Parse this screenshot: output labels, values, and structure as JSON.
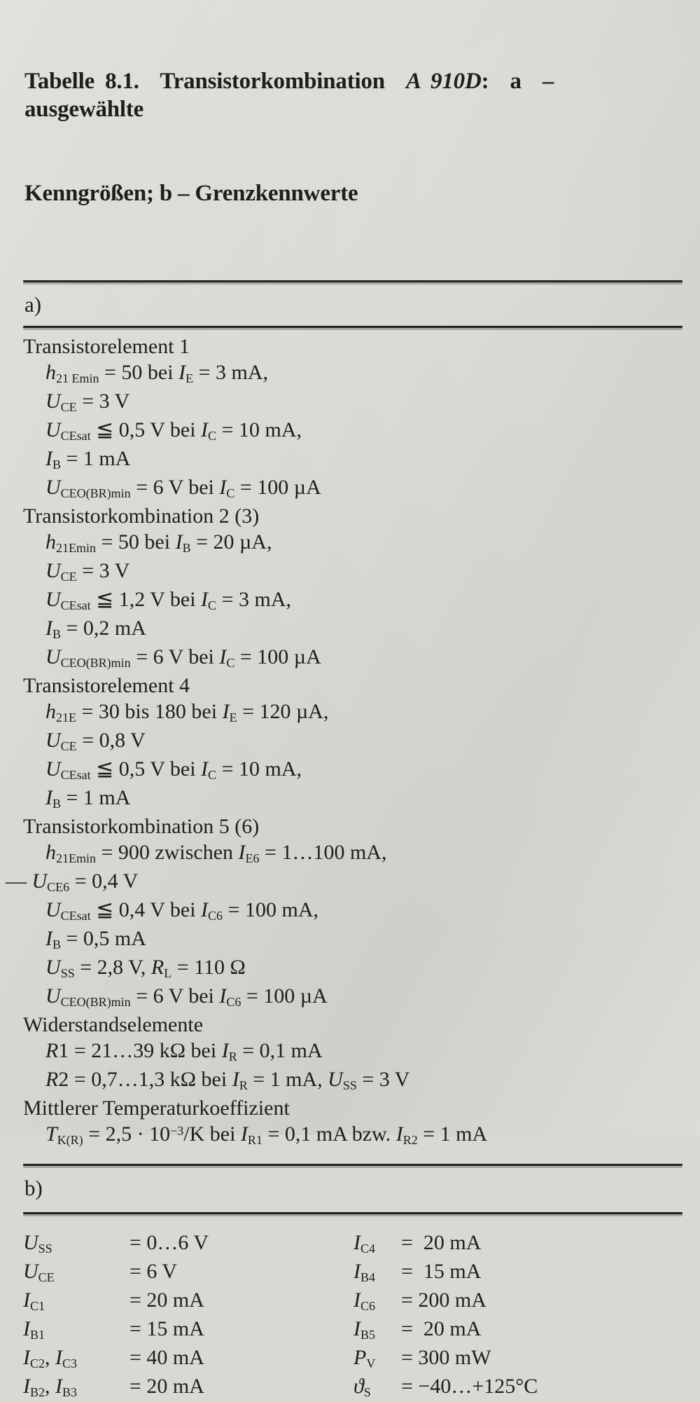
{
  "caption": {
    "line1": [
      {
        "t": "Tabelle 8.1."
      },
      {
        "t": "  Transistorkombination  "
      },
      {
        "t": "A 910D",
        "s": "i"
      },
      {
        "t": ":  a  –  ausgewählte"
      }
    ],
    "line2": [
      {
        "t": "Kenngrößen; b – Grenzkennwerte"
      }
    ]
  },
  "section_a": {
    "label": "a)",
    "lines": [
      {
        "ind": "h",
        "seg": [
          {
            "t": "Transistorelement 1"
          }
        ]
      },
      {
        "ind": "m",
        "seg": [
          {
            "t": "h",
            "s": "i"
          },
          {
            "t": "21 Emin",
            "s": "sub"
          },
          {
            "t": " = 50 bei "
          },
          {
            "t": "I",
            "s": "i"
          },
          {
            "t": "E",
            "s": "sub"
          },
          {
            "t": " = 3 mA,"
          }
        ]
      },
      {
        "ind": "m",
        "seg": [
          {
            "t": "U",
            "s": "i"
          },
          {
            "t": "CE",
            "s": "sub"
          },
          {
            "t": " = 3 V"
          }
        ]
      },
      {
        "ind": "m",
        "seg": [
          {
            "t": "U",
            "s": "i"
          },
          {
            "t": "CEsat",
            "s": "sub"
          },
          {
            "t": " ≦ 0,5 V bei "
          },
          {
            "t": "I",
            "s": "i"
          },
          {
            "t": "C",
            "s": "sub"
          },
          {
            "t": " = 10 mA,"
          }
        ]
      },
      {
        "ind": "m",
        "seg": [
          {
            "t": "I",
            "s": "i"
          },
          {
            "t": "B",
            "s": "sub"
          },
          {
            "t": " = 1 mA"
          }
        ]
      },
      {
        "ind": "m",
        "seg": [
          {
            "t": "U",
            "s": "i"
          },
          {
            "t": "CEO(BR)min",
            "s": "sub"
          },
          {
            "t": " = 6 V bei "
          },
          {
            "t": "I",
            "s": "i"
          },
          {
            "t": "C",
            "s": "sub"
          },
          {
            "t": " = 100 µA"
          }
        ]
      },
      {
        "ind": "h",
        "seg": [
          {
            "t": "Transistorkombination 2 (3)"
          }
        ]
      },
      {
        "ind": "m",
        "seg": [
          {
            "t": "h",
            "s": "i"
          },
          {
            "t": "21Emin",
            "s": "sub"
          },
          {
            "t": " = 50 bei "
          },
          {
            "t": "I",
            "s": "i"
          },
          {
            "t": "B",
            "s": "sub"
          },
          {
            "t": " = 20 µA,"
          }
        ]
      },
      {
        "ind": "m",
        "seg": [
          {
            "t": "U",
            "s": "i"
          },
          {
            "t": "CE",
            "s": "sub"
          },
          {
            "t": " = 3 V"
          }
        ]
      },
      {
        "ind": "m",
        "seg": [
          {
            "t": "U",
            "s": "i"
          },
          {
            "t": "CEsat",
            "s": "sub"
          },
          {
            "t": " ≦ 1,2 V bei "
          },
          {
            "t": "I",
            "s": "i"
          },
          {
            "t": "C",
            "s": "sub"
          },
          {
            "t": " = 3 mA,"
          }
        ]
      },
      {
        "ind": "m",
        "seg": [
          {
            "t": "I",
            "s": "i"
          },
          {
            "t": "B",
            "s": "sub"
          },
          {
            "t": " = 0,2 mA"
          }
        ]
      },
      {
        "ind": "m",
        "seg": [
          {
            "t": "U",
            "s": "i"
          },
          {
            "t": "CEO(BR)min",
            "s": "sub"
          },
          {
            "t": " = 6 V bei "
          },
          {
            "t": "I",
            "s": "i"
          },
          {
            "t": "C",
            "s": "sub"
          },
          {
            "t": " = 100 µA"
          }
        ]
      },
      {
        "ind": "h",
        "seg": [
          {
            "t": "Transistorelement 4"
          }
        ]
      },
      {
        "ind": "m",
        "seg": [
          {
            "t": "h",
            "s": "i"
          },
          {
            "t": "21E",
            "s": "sub"
          },
          {
            "t": " = 30 bis 180 bei "
          },
          {
            "t": "I",
            "s": "i"
          },
          {
            "t": "E",
            "s": "sub"
          },
          {
            "t": " = 120 µA,"
          }
        ]
      },
      {
        "ind": "m",
        "seg": [
          {
            "t": "U",
            "s": "i"
          },
          {
            "t": "CE",
            "s": "sub"
          },
          {
            "t": " = 0,8 V"
          }
        ]
      },
      {
        "ind": "m",
        "seg": [
          {
            "t": "U",
            "s": "i"
          },
          {
            "t": "CEsat",
            "s": "sub"
          },
          {
            "t": " ≦ 0,5 V bei "
          },
          {
            "t": "I",
            "s": "i"
          },
          {
            "t": "C",
            "s": "sub"
          },
          {
            "t": " = 10 mA,"
          }
        ]
      },
      {
        "ind": "m",
        "seg": [
          {
            "t": "I",
            "s": "i"
          },
          {
            "t": "B",
            "s": "sub"
          },
          {
            "t": " = 1 mA"
          }
        ]
      },
      {
        "ind": "h",
        "seg": [
          {
            "t": "Transistorkombination 5 (6)"
          }
        ]
      },
      {
        "ind": "m",
        "seg": [
          {
            "t": "h",
            "s": "i"
          },
          {
            "t": "21Emin",
            "s": "sub"
          },
          {
            "t": " = 900 zwischen "
          },
          {
            "t": "I",
            "s": "i"
          },
          {
            "t": "E6",
            "s": "sub"
          },
          {
            "t": " = 1…100 mA,"
          }
        ]
      },
      {
        "ind": "g",
        "seg": [
          {
            "t": "— "
          },
          {
            "t": "U",
            "s": "i"
          },
          {
            "t": "CE6",
            "s": "sub"
          },
          {
            "t": " = 0,4 V"
          }
        ]
      },
      {
        "ind": "m",
        "seg": [
          {
            "t": "U",
            "s": "i"
          },
          {
            "t": "CEsat",
            "s": "sub"
          },
          {
            "t": " ≦ 0,4 V bei "
          },
          {
            "t": "I",
            "s": "i"
          },
          {
            "t": "C6",
            "s": "sub"
          },
          {
            "t": " = 100 mA,"
          }
        ]
      },
      {
        "ind": "m",
        "seg": [
          {
            "t": "I",
            "s": "i"
          },
          {
            "t": "B",
            "s": "sub"
          },
          {
            "t": " = 0,5 mA"
          }
        ]
      },
      {
        "ind": "m",
        "seg": [
          {
            "t": "U",
            "s": "i"
          },
          {
            "t": "SS",
            "s": "sub"
          },
          {
            "t": " = 2,8 V, "
          },
          {
            "t": "R",
            "s": "i"
          },
          {
            "t": "L",
            "s": "sub"
          },
          {
            "t": " = 110 Ω"
          }
        ]
      },
      {
        "ind": "m",
        "seg": [
          {
            "t": "U",
            "s": "i"
          },
          {
            "t": "CEO(BR)min",
            "s": "sub"
          },
          {
            "t": " = 6 V bei "
          },
          {
            "t": "I",
            "s": "i"
          },
          {
            "t": "C6",
            "s": "sub"
          },
          {
            "t": " = 100 µA"
          }
        ]
      },
      {
        "ind": "h",
        "seg": [
          {
            "t": "Widerstandselemente"
          }
        ]
      },
      {
        "ind": "m",
        "seg": [
          {
            "t": "R",
            "s": "i"
          },
          {
            "t": "1 = 21…39 kΩ bei "
          },
          {
            "t": "I",
            "s": "i"
          },
          {
            "t": "R",
            "s": "sub"
          },
          {
            "t": " = 0,1 mA"
          }
        ]
      },
      {
        "ind": "m",
        "seg": [
          {
            "t": "R",
            "s": "i"
          },
          {
            "t": "2 = 0,7…1,3 kΩ bei "
          },
          {
            "t": "I",
            "s": "i"
          },
          {
            "t": "R",
            "s": "sub"
          },
          {
            "t": " = 1 mA, "
          },
          {
            "t": "U",
            "s": "i"
          },
          {
            "t": "SS",
            "s": "sub"
          },
          {
            "t": " = 3 V"
          }
        ]
      },
      {
        "ind": "h",
        "seg": [
          {
            "t": "Mittlerer Temperaturkoeffizient"
          }
        ]
      },
      {
        "ind": "m",
        "seg": [
          {
            "t": "T",
            "s": "i"
          },
          {
            "t": "K(R)",
            "s": "sub"
          },
          {
            "t": " = 2,5 · 10"
          },
          {
            "t": "−3",
            "s": "sup"
          },
          {
            "t": "/K bei "
          },
          {
            "t": "I",
            "s": "i"
          },
          {
            "t": "R1",
            "s": "sub"
          },
          {
            "t": " = 0,1 mA bzw. "
          },
          {
            "t": "I",
            "s": "i"
          },
          {
            "t": "R2",
            "s": "sub"
          },
          {
            "t": " = 1 mA"
          }
        ]
      }
    ]
  },
  "section_b": {
    "label": "b)",
    "left": [
      {
        "label": [
          {
            "t": "U",
            "s": "i"
          },
          {
            "t": "SS",
            "s": "sub"
          }
        ],
        "value": "= 0…6 V"
      },
      {
        "label": [
          {
            "t": "U",
            "s": "i"
          },
          {
            "t": "CE",
            "s": "sub"
          }
        ],
        "value": "= 6 V"
      },
      {
        "label": [
          {
            "t": "I",
            "s": "i"
          },
          {
            "t": "C1",
            "s": "sub"
          }
        ],
        "value": "= 20 mA"
      },
      {
        "label": [
          {
            "t": "I",
            "s": "i"
          },
          {
            "t": "B1",
            "s": "sub"
          }
        ],
        "value": "= 15 mA"
      },
      {
        "label": [
          {
            "t": "I",
            "s": "i"
          },
          {
            "t": "C2",
            "s": "sub"
          },
          {
            "t": ", "
          },
          {
            "t": "I",
            "s": "i"
          },
          {
            "t": "C3",
            "s": "sub"
          }
        ],
        "value": "= 40 mA"
      },
      {
        "label": [
          {
            "t": "I",
            "s": "i"
          },
          {
            "t": "B2",
            "s": "sub"
          },
          {
            "t": ", "
          },
          {
            "t": "I",
            "s": "i"
          },
          {
            "t": "B3",
            "s": "sub"
          }
        ],
        "value": "= 20 mA"
      }
    ],
    "right": [
      {
        "label": [
          {
            "t": "I",
            "s": "i"
          },
          {
            "t": "C4",
            "s": "sub"
          }
        ],
        "value": "=  20 mA"
      },
      {
        "label": [
          {
            "t": "I",
            "s": "i"
          },
          {
            "t": "B4",
            "s": "sub"
          }
        ],
        "value": "=  15 mA"
      },
      {
        "label": [
          {
            "t": "I",
            "s": "i"
          },
          {
            "t": "C6",
            "s": "sub"
          }
        ],
        "value": "= 200 mA"
      },
      {
        "label": [
          {
            "t": "I",
            "s": "i"
          },
          {
            "t": "B5",
            "s": "sub"
          }
        ],
        "value": "=  20 mA"
      },
      {
        "label": [
          {
            "t": "P",
            "s": "i"
          },
          {
            "t": "V",
            "s": "sub"
          }
        ],
        "value": "= 300 mW"
      },
      {
        "label": [
          {
            "t": "ϑ",
            "s": "i"
          },
          {
            "t": "S",
            "s": "sub"
          }
        ],
        "value": "= −40…+125°C"
      }
    ]
  }
}
